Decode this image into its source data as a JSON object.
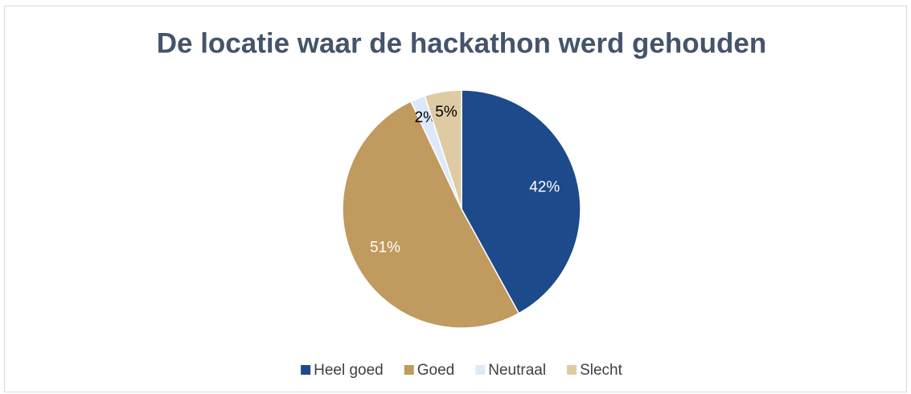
{
  "chart_data": {
    "type": "pie",
    "title": "De locatie waar de hackathon werd gehouden",
    "categories": [
      "Heel goed",
      "Goed",
      "Neutraal",
      "Slecht"
    ],
    "values": [
      42,
      51,
      2,
      5
    ],
    "value_labels": [
      "42%",
      "51%",
      "2%",
      "5%"
    ],
    "colors": [
      "#1d4a8a",
      "#c09a5e",
      "#dce9f8",
      "#dfcba3"
    ],
    "legend": "bottom"
  }
}
